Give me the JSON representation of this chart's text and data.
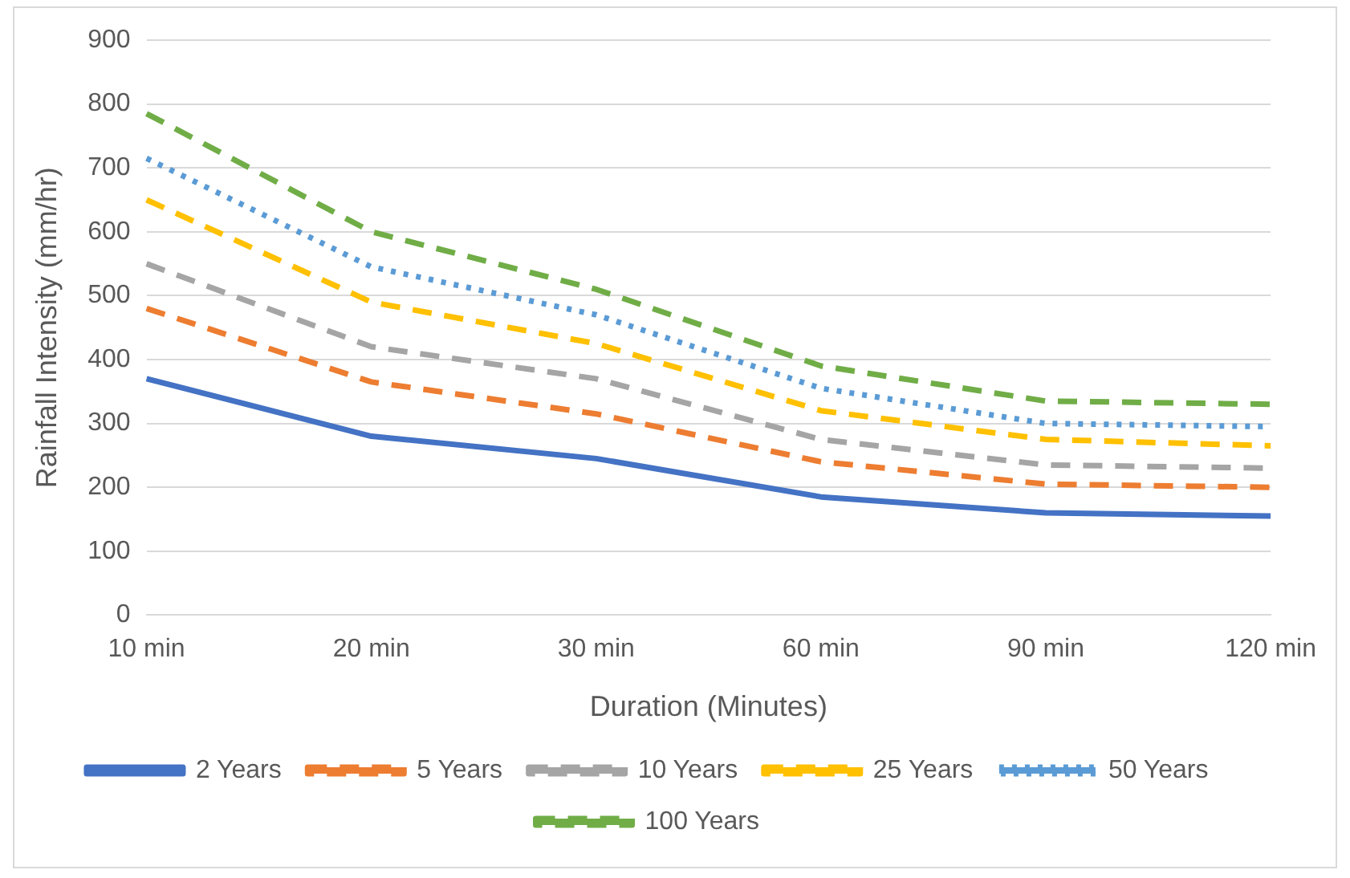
{
  "chart_data": {
    "type": "line",
    "xlabel": "Duration (Minutes)",
    "ylabel": "Rainfall Intensity (mm/hr)",
    "categories": [
      "10 min",
      "20 min",
      "30 min",
      "60 min",
      "90 min",
      "120 min"
    ],
    "series": [
      {
        "name": "2 Years",
        "color": "#4472c4",
        "line_style": "solid",
        "values": [
          370,
          280,
          245,
          185,
          160,
          155
        ]
      },
      {
        "name": "5 Years",
        "color": "#ed7d31",
        "line_style": "dashed",
        "values": [
          480,
          365,
          315,
          240,
          205,
          200
        ]
      },
      {
        "name": "10 Years",
        "color": "#a5a5a5",
        "line_style": "dashed",
        "values": [
          550,
          420,
          370,
          275,
          235,
          230
        ]
      },
      {
        "name": "25 Years",
        "color": "#ffc000",
        "line_style": "dashed",
        "values": [
          650,
          490,
          425,
          320,
          275,
          265
        ]
      },
      {
        "name": "50 Years",
        "color": "#5b9bd5",
        "line_style": "dotted",
        "values": [
          715,
          545,
          470,
          355,
          300,
          295
        ]
      },
      {
        "name": "100 Years",
        "color": "#70ad47",
        "line_style": "dashed",
        "values": [
          785,
          600,
          510,
          390,
          335,
          330
        ]
      }
    ],
    "ylim": [
      0,
      900
    ],
    "yticks": [
      0,
      100,
      200,
      300,
      400,
      500,
      600,
      700,
      800,
      900
    ],
    "grid": "y",
    "legend": "bottom",
    "marker": "none"
  }
}
